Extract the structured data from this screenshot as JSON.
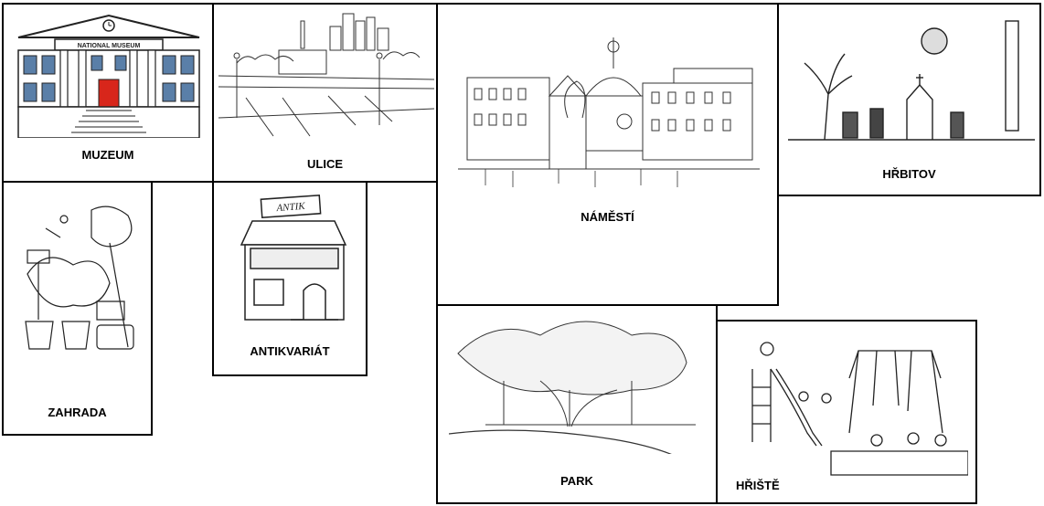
{
  "cards": {
    "muzeum": {
      "label": "MUZEUM",
      "sign": "NATIONAL MUSEUM"
    },
    "ulice": {
      "label": "ULICE"
    },
    "namesti": {
      "label": "NÁMĚSTÍ"
    },
    "hrbitov": {
      "label": "HŘBITOV"
    },
    "zahrada": {
      "label": "ZAHRADA"
    },
    "antikvariat": {
      "label": "ANTIKVARIÁT",
      "sign": "ANTIK"
    },
    "park": {
      "label": "PARK"
    },
    "hriste": {
      "label": "HŘIŠTĚ"
    }
  },
  "colors": {
    "door": "#d8261b",
    "window": "#5a7fa8",
    "line": "#222222"
  }
}
